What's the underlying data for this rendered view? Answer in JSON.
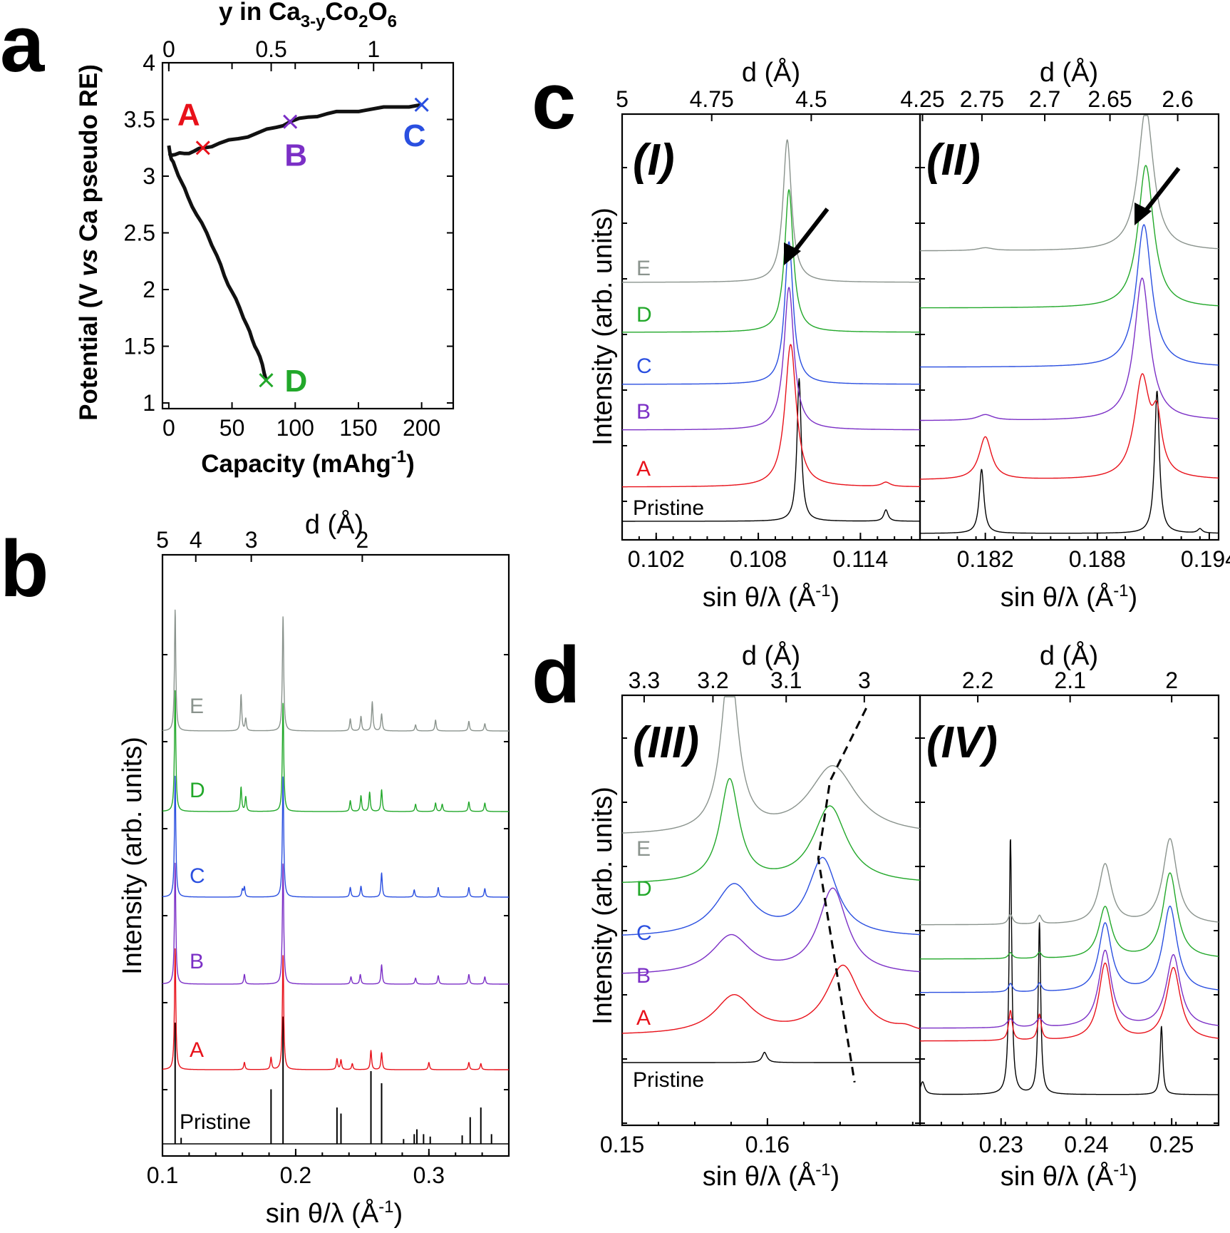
{
  "panel_labels": {
    "a": "a",
    "b": "b",
    "c": "c",
    "d": "d"
  },
  "axis_text": {
    "potential_y": "Potential (V vs Ca pseudo RE)",
    "capacity_x": "Capacity (mAhg-1)",
    "y_top_axis": "y in Ca3-yCo2O6",
    "intensity_y": "Intensity (arb. units)",
    "sin_x": "sin θ/λ (Å-1)",
    "d_axis": "d (Å)"
  },
  "trace_names": [
    "Pristine",
    "A",
    "B",
    "C",
    "D",
    "E"
  ],
  "subpanel_labels": [
    "(I)",
    "(II)",
    "(III)",
    "(IV)"
  ],
  "colors": {
    "Pristine": "#000000",
    "A": "#e8111a",
    "B": "#7b2fc6",
    "C": "#2a4fe0",
    "D": "#22a82a",
    "E": "#8a938d",
    "curve": "#111111"
  },
  "chart_data": [
    {
      "panel": "a",
      "type": "line",
      "xlabel": "Capacity (mAhg-1)",
      "ylabel": "Potential (V vs Ca pseudo RE)",
      "top_xlabel": "y in Ca3-yCo2O6",
      "xlim": [
        -5,
        225
      ],
      "ylim": [
        0.95,
        4.0
      ],
      "xticks": [
        "0",
        "50",
        "100",
        "150",
        "200"
      ],
      "yticks": [
        "1",
        "1.5",
        "2",
        "2.5",
        "3",
        "3.5",
        "4"
      ],
      "top_ticks": [
        "0",
        "0.5",
        "1"
      ],
      "top_tick_capacity": [
        0,
        81,
        162
      ],
      "series": [
        {
          "name": "charge",
          "x": [
            0,
            5,
            12,
            20,
            28,
            40,
            55,
            70,
            85,
            96,
            110,
            125,
            140,
            160,
            180,
            200
          ],
          "y": [
            3.2,
            3.19,
            3.2,
            3.22,
            3.25,
            3.29,
            3.33,
            3.38,
            3.43,
            3.48,
            3.52,
            3.55,
            3.57,
            3.59,
            3.61,
            3.63
          ]
        },
        {
          "name": "discharge",
          "x": [
            0,
            2,
            5,
            10,
            15,
            22,
            30,
            38,
            44,
            50,
            56,
            62,
            66,
            70,
            74,
            77
          ],
          "y": [
            3.27,
            3.15,
            3.08,
            2.95,
            2.82,
            2.66,
            2.5,
            2.3,
            2.12,
            1.98,
            1.84,
            1.68,
            1.56,
            1.46,
            1.34,
            1.2
          ]
        }
      ],
      "points": [
        {
          "label": "A",
          "x": 27,
          "y": 3.25
        },
        {
          "label": "B",
          "x": 96,
          "y": 3.48
        },
        {
          "label": "C",
          "x": 200,
          "y": 3.63
        },
        {
          "label": "D",
          "x": 77,
          "y": 1.2
        }
      ]
    },
    {
      "panel": "b",
      "type": "line",
      "xlabel": "sin θ/λ (Å-1)",
      "ylabel": "Intensity (arb. units)",
      "xlim": [
        0.1,
        0.36
      ],
      "xticks": [
        "0.1",
        "0.2",
        "0.3"
      ],
      "d_ticks": [
        "5",
        "4",
        "3",
        "2"
      ],
      "d_tick_values": [
        5,
        4,
        3,
        2
      ],
      "traces": [
        {
          "name": "Pristine",
          "type": "sticks",
          "peaks": [
            [
              0.1095,
              1.0
            ],
            [
              0.114,
              0.05
            ],
            [
              0.1815,
              0.45
            ],
            [
              0.1905,
              1.05
            ],
            [
              0.231,
              0.3
            ],
            [
              0.234,
              0.25
            ],
            [
              0.2565,
              0.6
            ],
            [
              0.2645,
              0.5
            ],
            [
              0.281,
              0.04
            ],
            [
              0.289,
              0.08
            ],
            [
              0.291,
              0.12
            ],
            [
              0.296,
              0.08
            ],
            [
              0.301,
              0.06
            ],
            [
              0.325,
              0.07
            ],
            [
              0.331,
              0.22
            ],
            [
              0.339,
              0.3
            ],
            [
              0.347,
              0.08
            ]
          ]
        },
        {
          "name": "A",
          "peaks": [
            [
              0.1095,
              1.0
            ],
            [
              0.1615,
              0.06
            ],
            [
              0.1815,
              0.1
            ],
            [
              0.1905,
              0.95
            ],
            [
              0.231,
              0.09
            ],
            [
              0.234,
              0.08
            ],
            [
              0.2425,
              0.05
            ],
            [
              0.2565,
              0.16
            ],
            [
              0.2645,
              0.14
            ],
            [
              0.3,
              0.06
            ],
            [
              0.33,
              0.06
            ],
            [
              0.339,
              0.05
            ]
          ]
        },
        {
          "name": "B",
          "peaks": [
            [
              0.1095,
              1.0
            ],
            [
              0.1615,
              0.08
            ],
            [
              0.1905,
              1.0
            ],
            [
              0.2415,
              0.06
            ],
            [
              0.2485,
              0.08
            ],
            [
              0.2645,
              0.16
            ],
            [
              0.29,
              0.05
            ],
            [
              0.307,
              0.07
            ],
            [
              0.33,
              0.08
            ],
            [
              0.342,
              0.06
            ]
          ]
        },
        {
          "name": "C",
          "peaks": [
            [
              0.1095,
              1.0
            ],
            [
              0.16,
              0.06
            ],
            [
              0.1615,
              0.08
            ],
            [
              0.1905,
              1.0
            ],
            [
              0.241,
              0.08
            ],
            [
              0.249,
              0.09
            ],
            [
              0.2645,
              0.2
            ],
            [
              0.289,
              0.06
            ],
            [
              0.307,
              0.08
            ],
            [
              0.33,
              0.08
            ],
            [
              0.342,
              0.07
            ]
          ]
        },
        {
          "name": "D",
          "peaks": [
            [
              0.1095,
              1.0
            ],
            [
              0.159,
              0.2
            ],
            [
              0.1625,
              0.12
            ],
            [
              0.1905,
              0.9
            ],
            [
              0.241,
              0.09
            ],
            [
              0.249,
              0.13
            ],
            [
              0.2555,
              0.16
            ],
            [
              0.2645,
              0.18
            ],
            [
              0.29,
              0.06
            ],
            [
              0.305,
              0.07
            ],
            [
              0.31,
              0.06
            ],
            [
              0.33,
              0.08
            ],
            [
              0.342,
              0.07
            ]
          ]
        },
        {
          "name": "E",
          "peaks": [
            [
              0.1095,
              1.0
            ],
            [
              0.159,
              0.3
            ],
            [
              0.1625,
              0.1
            ],
            [
              0.1905,
              0.95
            ],
            [
              0.241,
              0.1
            ],
            [
              0.249,
              0.12
            ],
            [
              0.2575,
              0.24
            ],
            [
              0.2645,
              0.14
            ],
            [
              0.29,
              0.05
            ],
            [
              0.305,
              0.09
            ],
            [
              0.33,
              0.08
            ],
            [
              0.342,
              0.06
            ]
          ]
        }
      ]
    },
    {
      "panel": "c",
      "sub": "(I)",
      "type": "line",
      "xlabel": "sin θ/λ (Å-1)",
      "ylabel": "Intensity (arb. units)",
      "xlim": [
        0.1,
        0.1175
      ],
      "xticks": [
        "0.102",
        "0.108",
        "0.114"
      ],
      "d_ticks": [
        "5",
        "4.75",
        "4.5",
        "4.25"
      ],
      "d_tick_values": [
        5,
        4.75,
        4.5,
        4.25
      ],
      "traces": [
        {
          "name": "Pristine",
          "peaks": [
            [
              0.1104,
              1.0,
              0.00015
            ],
            [
              0.1155,
              0.08,
              0.00015
            ]
          ]
        },
        {
          "name": "A",
          "peaks": [
            [
              0.1099,
              1.0,
              0.0004
            ],
            [
              0.1155,
              0.03,
              0.0003
            ]
          ]
        },
        {
          "name": "B",
          "peaks": [
            [
              0.1098,
              1.0,
              0.00035
            ]
          ]
        },
        {
          "name": "C",
          "peaks": [
            [
              0.1098,
              1.0,
              0.0003
            ]
          ]
        },
        {
          "name": "D",
          "peaks": [
            [
              0.1098,
              1.0,
              0.0003
            ]
          ]
        },
        {
          "name": "E",
          "peaks": [
            [
              0.1097,
              1.0,
              0.0003
            ]
          ]
        }
      ]
    },
    {
      "panel": "c",
      "sub": "(II)",
      "type": "line",
      "xlim": [
        0.1785,
        0.1945
      ],
      "xticks": [
        "0.182",
        "0.188",
        "0.194"
      ],
      "d_ticks": [
        "2.75",
        "2.7",
        "2.65",
        "2.6"
      ],
      "d_tick_values": [
        2.75,
        2.7,
        2.65,
        2.6
      ],
      "traces": [
        {
          "name": "Pristine",
          "peaks": [
            [
              0.1818,
              0.45,
              0.00015
            ],
            [
              0.1912,
              1.0,
              0.00015
            ],
            [
              0.1935,
              0.03,
              0.00015
            ]
          ]
        },
        {
          "name": "A",
          "peaks": [
            [
              0.182,
              0.3,
              0.0004
            ],
            [
              0.1904,
              0.7,
              0.0005
            ],
            [
              0.1912,
              0.35,
              0.0003
            ]
          ]
        },
        {
          "name": "B",
          "peaks": [
            [
              0.182,
              0.04,
              0.0005
            ],
            [
              0.1904,
              1.0,
              0.0005
            ]
          ]
        },
        {
          "name": "C",
          "peaks": [
            [
              0.1905,
              1.0,
              0.0005
            ]
          ]
        },
        {
          "name": "D",
          "peaks": [
            [
              0.1906,
              1.0,
              0.0005
            ]
          ]
        },
        {
          "name": "E",
          "peaks": [
            [
              0.182,
              0.02,
              0.0005
            ],
            [
              0.1906,
              1.0,
              0.0005
            ]
          ]
        }
      ]
    },
    {
      "panel": "d",
      "sub": "(III)",
      "type": "line",
      "xlabel": "sin θ/λ (Å-1)",
      "ylabel": "Intensity (arb. units)",
      "xlim": [
        0.15,
        0.1705
      ],
      "xticks": [
        "0.15",
        "0.16"
      ],
      "d_ticks": [
        "3.3",
        "3.2",
        "3.1",
        "3"
      ],
      "d_tick_values": [
        3.3,
        3.2,
        3.1,
        3.0
      ],
      "traces": [
        {
          "name": "Pristine",
          "peaks": [
            [
              0.1598,
              0.12,
              0.0002
            ]
          ]
        },
        {
          "name": "A",
          "peaks": [
            [
              0.1577,
              0.45,
              0.0016
            ],
            [
              0.1652,
              0.8,
              0.0014
            ],
            [
              0.1695,
              0.05,
              0.0008
            ]
          ]
        },
        {
          "name": "B",
          "peaks": [
            [
              0.1575,
              0.45,
              0.0016
            ],
            [
              0.1645,
              1.0,
              0.0012
            ]
          ]
        },
        {
          "name": "C",
          "peaks": [
            [
              0.1577,
              0.6,
              0.0016
            ],
            [
              0.1638,
              0.9,
              0.0012
            ]
          ]
        },
        {
          "name": "D",
          "peaks": [
            [
              0.1574,
              1.2,
              0.0008
            ],
            [
              0.1643,
              0.9,
              0.0014
            ]
          ]
        },
        {
          "name": "E",
          "peaks": [
            [
              0.1574,
              2.0,
              0.0007
            ],
            [
              0.1645,
              0.8,
              0.002
            ]
          ]
        }
      ],
      "dashed_guide": {
        "x": [
          0.1668,
          0.1643,
          0.1635,
          0.1648,
          0.166
        ],
        "level": [
          0.97,
          0.8,
          0.62,
          0.35,
          0.1
        ]
      }
    },
    {
      "panel": "d",
      "sub": "(IV)",
      "type": "line",
      "xlim": [
        0.2205,
        0.2555
      ],
      "xticks": [
        "0.23",
        "0.24",
        "0.25"
      ],
      "d_ticks": [
        "2.2",
        "2.1",
        "2"
      ],
      "d_tick_values": [
        2.2,
        2.1,
        2.0
      ],
      "traces": [
        {
          "name": "Pristine",
          "peaks": [
            [
              0.2208,
              0.15,
              0.0003
            ],
            [
              0.2311,
              3.0,
              0.00018
            ],
            [
              0.2345,
              2.0,
              0.00018
            ],
            [
              0.2488,
              0.8,
              0.00018
            ]
          ]
        },
        {
          "name": "A",
          "peaks": [
            [
              0.2311,
              0.35,
              0.00025
            ],
            [
              0.2345,
              0.3,
              0.00025
            ],
            [
              0.2422,
              0.9,
              0.0009
            ],
            [
              0.2502,
              0.85,
              0.001
            ]
          ]
        },
        {
          "name": "B",
          "peaks": [
            [
              0.2311,
              0.1,
              0.0005
            ],
            [
              0.2345,
              0.1,
              0.0005
            ],
            [
              0.2422,
              0.9,
              0.0009
            ],
            [
              0.2502,
              0.85,
              0.001
            ]
          ]
        },
        {
          "name": "C",
          "peaks": [
            [
              0.2311,
              0.1,
              0.0003
            ],
            [
              0.2345,
              0.1,
              0.0003
            ],
            [
              0.2422,
              0.8,
              0.0009
            ],
            [
              0.2498,
              1.0,
              0.001
            ]
          ]
        },
        {
          "name": "D",
          "peaks": [
            [
              0.2311,
              0.07,
              0.0003
            ],
            [
              0.2345,
              0.07,
              0.0003
            ],
            [
              0.2422,
              0.6,
              0.0009
            ],
            [
              0.2498,
              1.0,
              0.001
            ]
          ]
        },
        {
          "name": "E",
          "peaks": [
            [
              0.2311,
              0.12,
              0.0003
            ],
            [
              0.2345,
              0.1,
              0.0003
            ],
            [
              0.2422,
              0.7,
              0.0009
            ],
            [
              0.2498,
              1.0,
              0.001
            ]
          ]
        }
      ]
    }
  ]
}
